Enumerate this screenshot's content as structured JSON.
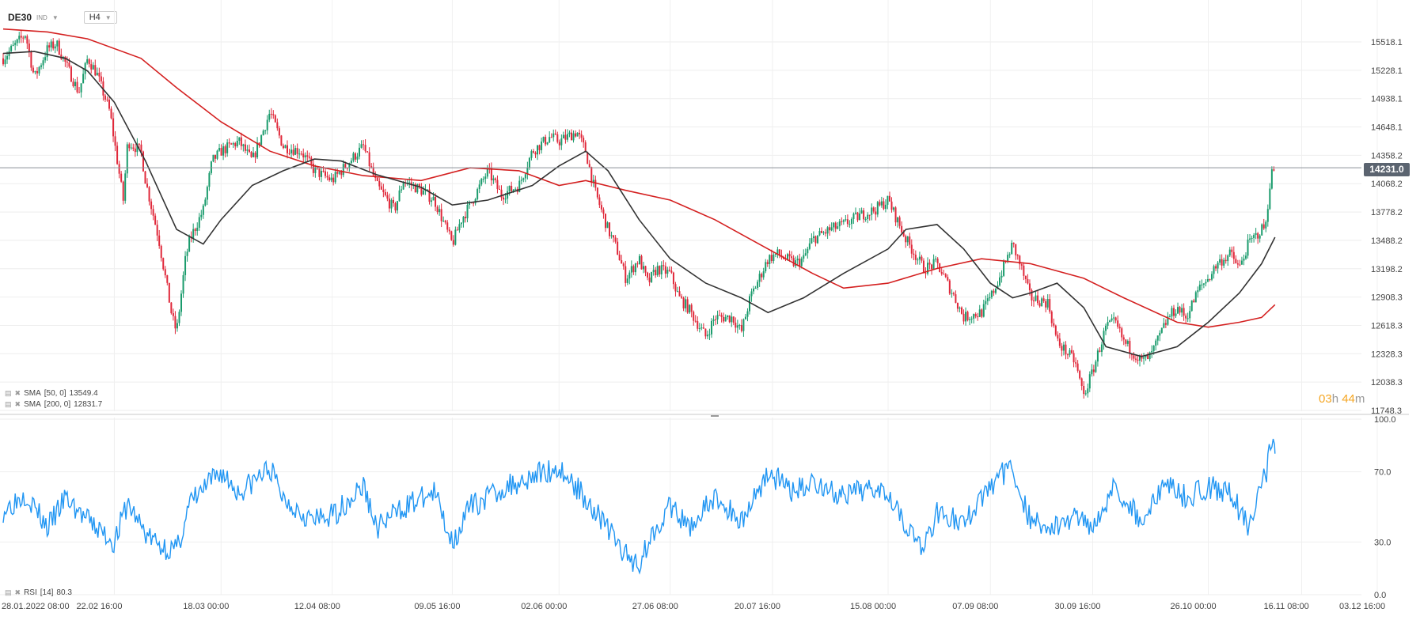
{
  "header": {
    "symbol": "DE30",
    "instrument_type": "IND",
    "timeframe": "H4"
  },
  "indicators": {
    "sma50": {
      "name": "SMA",
      "params": "[50, 0]",
      "value": "13549.4",
      "color": "#333333"
    },
    "sma200": {
      "name": "SMA",
      "params": "[200, 0]",
      "value": "12831.7",
      "color": "#d42020"
    },
    "rsi": {
      "name": "RSI",
      "params": "[14]",
      "value": "80.3",
      "color": "#2196f3"
    }
  },
  "current_price": "14231.0",
  "countdown": {
    "hours": "03",
    "h_unit": "h",
    "minutes": "44",
    "m_unit": "m"
  },
  "chart_data": [
    {
      "type": "candlestick",
      "price_axis_ticks": [
        "15518.1",
        "15228.1",
        "14938.1",
        "14648.1",
        "14358.2",
        "14068.2",
        "13778.2",
        "13488.2",
        "13198.2",
        "12908.3",
        "12618.3",
        "12328.3",
        "12038.3",
        "11748.3"
      ],
      "ylim": [
        11748.3,
        15750
      ],
      "x_tick_labels": [
        "28.01.2022  08:00",
        "22.02  16:00",
        "18.03  00:00",
        "12.04  08:00",
        "09.05  16:00",
        "02.06  00:00",
        "27.06  08:00",
        "20.07  16:00",
        "15.08  00:00",
        "07.09  08:00",
        "30.09  16:00",
        "26.10  00:00",
        "16.11  08:00",
        "03.12  16:00"
      ],
      "current_price": 14231.0,
      "close_path": [
        [
          "28.01",
          15350
        ],
        [
          "31.01",
          15500
        ],
        [
          "02.02",
          15600
        ],
        [
          "04.02",
          15150
        ],
        [
          "07.02",
          15450
        ],
        [
          "09.02",
          15500
        ],
        [
          "11.02",
          15300
        ],
        [
          "14.02",
          15000
        ],
        [
          "16.02",
          15350
        ],
        [
          "18.02",
          15200
        ],
        [
          "21.02",
          14800
        ],
        [
          "22.02",
          14500
        ],
        [
          "24.02",
          13900
        ],
        [
          "25.02",
          14500
        ],
        [
          "28.02",
          14400
        ],
        [
          "01.03",
          14100
        ],
        [
          "02.03",
          13900
        ],
        [
          "04.03",
          13500
        ],
        [
          "07.03",
          12700
        ],
        [
          "08.03",
          12550
        ],
        [
          "10.03",
          13300
        ],
        [
          "11.03",
          13500
        ],
        [
          "14.03",
          13800
        ],
        [
          "16.03",
          14300
        ],
        [
          "18.03",
          14400
        ],
        [
          "22.03",
          14500
        ],
        [
          "25.03",
          14300
        ],
        [
          "29.03",
          14800
        ],
        [
          "01.04",
          14450
        ],
        [
          "05.04",
          14400
        ],
        [
          "08.04",
          14200
        ],
        [
          "12.04",
          14100
        ],
        [
          "14.04",
          14200
        ],
        [
          "19.04",
          14450
        ],
        [
          "22.04",
          14050
        ],
        [
          "26.04",
          13800
        ],
        [
          "28.04",
          14100
        ],
        [
          "02.05",
          14000
        ],
        [
          "05.05",
          13900
        ],
        [
          "09.05",
          13450
        ],
        [
          "11.05",
          13700
        ],
        [
          "13.05",
          13850
        ],
        [
          "17.05",
          14200
        ],
        [
          "20.05",
          13950
        ],
        [
          "24.05",
          14050
        ],
        [
          "27.05",
          14400
        ],
        [
          "31.05",
          14550
        ],
        [
          "02.06",
          14500
        ],
        [
          "06.06",
          14600
        ],
        [
          "08.06",
          14400
        ],
        [
          "10.06",
          14000
        ],
        [
          "13.06",
          13600
        ],
        [
          "15.06",
          13400
        ],
        [
          "17.06",
          13100
        ],
        [
          "20.06",
          13300
        ],
        [
          "22.06",
          13050
        ],
        [
          "24.06",
          13200
        ],
        [
          "27.06",
          13150
        ],
        [
          "29.06",
          12900
        ],
        [
          "01.07",
          12800
        ],
        [
          "05.07",
          12500
        ],
        [
          "07.07",
          12700
        ],
        [
          "11.07",
          12700
        ],
        [
          "13.07",
          12550
        ],
        [
          "15.07",
          12900
        ],
        [
          "19.07",
          13300
        ],
        [
          "21.07",
          13350
        ],
        [
          "25.07",
          13250
        ],
        [
          "27.07",
          13300
        ],
        [
          "29.07",
          13500
        ],
        [
          "02.08",
          13600
        ],
        [
          "05.08",
          13650
        ],
        [
          "09.08",
          13750
        ],
        [
          "12.08",
          13800
        ],
        [
          "15.08",
          13900
        ],
        [
          "17.08",
          13700
        ],
        [
          "19.08",
          13500
        ],
        [
          "23.08",
          13200
        ],
        [
          "26.08",
          13250
        ],
        [
          "30.08",
          12900
        ],
        [
          "01.09",
          12700
        ],
        [
          "05.09",
          12750
        ],
        [
          "07.09",
          12900
        ],
        [
          "09.09",
          13100
        ],
        [
          "12.09",
          13450
        ],
        [
          "14.09",
          13200
        ],
        [
          "16.09",
          12900
        ],
        [
          "20.09",
          12850
        ],
        [
          "22.09",
          12450
        ],
        [
          "26.09",
          12250
        ],
        [
          "28.09",
          11900
        ],
        [
          "30.09",
          12150
        ],
        [
          "03.10",
          12600
        ],
        [
          "05.10",
          12650
        ],
        [
          "07.10",
          12450
        ],
        [
          "11.10",
          12250
        ],
        [
          "13.10",
          12300
        ],
        [
          "17.10",
          12700
        ],
        [
          "19.10",
          12800
        ],
        [
          "21.10",
          12700
        ],
        [
          "24.10",
          13000
        ],
        [
          "26.10",
          13100
        ],
        [
          "28.10",
          13250
        ],
        [
          "31.10",
          13350
        ],
        [
          "02.11",
          13200
        ],
        [
          "04.11",
          13450
        ],
        [
          "07.11",
          13600
        ],
        [
          "08.11",
          13650
        ],
        [
          "09.11",
          14150
        ],
        [
          "10.11",
          14231
        ]
      ],
      "sma50_path": [
        [
          "28.01",
          15400
        ],
        [
          "04.02",
          15420
        ],
        [
          "11.02",
          15350
        ],
        [
          "16.02",
          15220
        ],
        [
          "22.02",
          14900
        ],
        [
          "01.03",
          14300
        ],
        [
          "08.03",
          13600
        ],
        [
          "14.03",
          13450
        ],
        [
          "18.03",
          13700
        ],
        [
          "25.03",
          14050
        ],
        [
          "01.04",
          14200
        ],
        [
          "08.04",
          14320
        ],
        [
          "14.04",
          14300
        ],
        [
          "22.04",
          14160
        ],
        [
          "02.05",
          14030
        ],
        [
          "09.05",
          13850
        ],
        [
          "17.05",
          13900
        ],
        [
          "27.05",
          14050
        ],
        [
          "02.06",
          14250
        ],
        [
          "08.06",
          14400
        ],
        [
          "13.06",
          14200
        ],
        [
          "20.06",
          13700
        ],
        [
          "27.06",
          13300
        ],
        [
          "05.07",
          13050
        ],
        [
          "13.07",
          12900
        ],
        [
          "19.07",
          12750
        ],
        [
          "27.07",
          12900
        ],
        [
          "05.08",
          13150
        ],
        [
          "15.08",
          13400
        ],
        [
          "19.08",
          13600
        ],
        [
          "26.08",
          13650
        ],
        [
          "01.09",
          13400
        ],
        [
          "07.09",
          13050
        ],
        [
          "12.09",
          12900
        ],
        [
          "16.09",
          12950
        ],
        [
          "22.09",
          13050
        ],
        [
          "28.09",
          12800
        ],
        [
          "03.10",
          12400
        ],
        [
          "11.10",
          12300
        ],
        [
          "19.10",
          12400
        ],
        [
          "26.10",
          12650
        ],
        [
          "02.11",
          12950
        ],
        [
          "07.11",
          13250
        ],
        [
          "10.11",
          13520
        ]
      ],
      "sma200_path": [
        [
          "28.01",
          15650
        ],
        [
          "07.02",
          15620
        ],
        [
          "16.02",
          15550
        ],
        [
          "28.02",
          15350
        ],
        [
          "08.03",
          15050
        ],
        [
          "18.03",
          14700
        ],
        [
          "29.03",
          14400
        ],
        [
          "08.04",
          14250
        ],
        [
          "19.04",
          14150
        ],
        [
          "02.05",
          14100
        ],
        [
          "13.05",
          14230
        ],
        [
          "24.05",
          14200
        ],
        [
          "02.06",
          14050
        ],
        [
          "08.06",
          14100
        ],
        [
          "17.06",
          14000
        ],
        [
          "27.06",
          13900
        ],
        [
          "07.07",
          13700
        ],
        [
          "19.07",
          13400
        ],
        [
          "29.07",
          13150
        ],
        [
          "05.08",
          13000
        ],
        [
          "15.08",
          13050
        ],
        [
          "26.08",
          13200
        ],
        [
          "05.09",
          13300
        ],
        [
          "16.09",
          13250
        ],
        [
          "28.09",
          13100
        ],
        [
          "07.10",
          12900
        ],
        [
          "19.10",
          12650
        ],
        [
          "26.10",
          12600
        ],
        [
          "02.11",
          12650
        ],
        [
          "07.11",
          12700
        ],
        [
          "10.11",
          12830
        ]
      ]
    },
    {
      "type": "line",
      "name": "RSI [14]",
      "ylim": [
        0,
        100
      ],
      "y_ticks": [
        "100.0",
        "70.0",
        "30.0",
        "0.0"
      ],
      "current_value": 80.3,
      "series_path": [
        [
          "28.01",
          48
        ],
        [
          "02.02",
          58
        ],
        [
          "07.02",
          38
        ],
        [
          "11.02",
          55
        ],
        [
          "16.02",
          42
        ],
        [
          "22.02",
          30
        ],
        [
          "25.02",
          52
        ],
        [
          "01.03",
          35
        ],
        [
          "04.03",
          28
        ],
        [
          "08.03",
          25
        ],
        [
          "11.03",
          52
        ],
        [
          "16.03",
          65
        ],
        [
          "18.03",
          70
        ],
        [
          "22.03",
          58
        ],
        [
          "29.03",
          72
        ],
        [
          "01.04",
          55
        ],
        [
          "08.04",
          42
        ],
        [
          "12.04",
          45
        ],
        [
          "19.04",
          62
        ],
        [
          "22.04",
          38
        ],
        [
          "28.04",
          50
        ],
        [
          "05.05",
          58
        ],
        [
          "09.05",
          30
        ],
        [
          "13.05",
          50
        ],
        [
          "20.05",
          60
        ],
        [
          "27.05",
          68
        ],
        [
          "02.06",
          72
        ],
        [
          "08.06",
          55
        ],
        [
          "13.06",
          38
        ],
        [
          "17.06",
          22
        ],
        [
          "20.06",
          18
        ],
        [
          "24.06",
          40
        ],
        [
          "27.06",
          50
        ],
        [
          "01.07",
          38
        ],
        [
          "07.07",
          55
        ],
        [
          "13.07",
          42
        ],
        [
          "19.07",
          70
        ],
        [
          "25.07",
          58
        ],
        [
          "29.07",
          65
        ],
        [
          "05.08",
          55
        ],
        [
          "12.08",
          62
        ],
        [
          "15.08",
          60
        ],
        [
          "19.08",
          40
        ],
        [
          "23.08",
          25
        ],
        [
          "26.08",
          48
        ],
        [
          "01.09",
          40
        ],
        [
          "05.09",
          55
        ],
        [
          "09.09",
          68
        ],
        [
          "12.09",
          72
        ],
        [
          "16.09",
          42
        ],
        [
          "22.09",
          38
        ],
        [
          "26.09",
          45
        ],
        [
          "30.09",
          40
        ],
        [
          "05.10",
          62
        ],
        [
          "11.10",
          42
        ],
        [
          "17.10",
          65
        ],
        [
          "21.10",
          55
        ],
        [
          "26.10",
          62
        ],
        [
          "31.10",
          58
        ],
        [
          "04.11",
          38
        ],
        [
          "07.11",
          65
        ],
        [
          "08.11",
          68
        ],
        [
          "09.11",
          88
        ],
        [
          "10.11",
          80.3
        ]
      ]
    }
  ]
}
